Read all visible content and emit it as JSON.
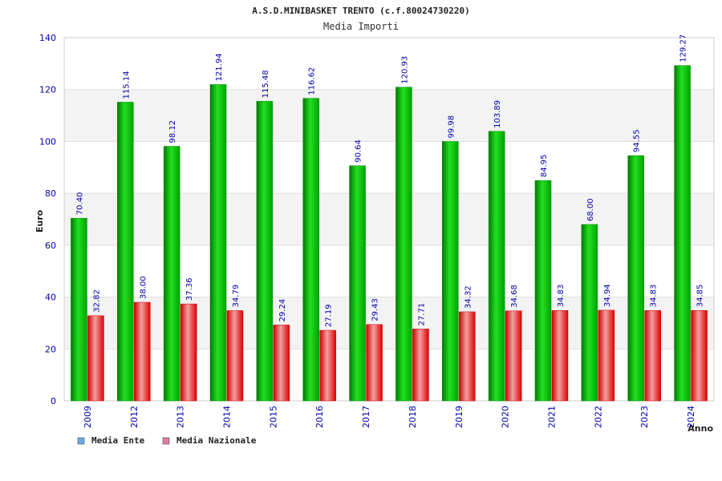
{
  "chart_data": {
    "type": "bar",
    "title": "A.S.D.MINIBASKET TRENTO (c.f.80024730220)",
    "subtitle": "Media Importi",
    "xlabel": "Anno",
    "ylabel": "Euro",
    "ylim": [
      0,
      140
    ],
    "yticks": [
      0,
      20,
      40,
      60,
      80,
      100,
      120,
      140
    ],
    "grid": true,
    "legend_position": "bottom-left",
    "categories": [
      "2009",
      "2012",
      "2013",
      "2014",
      "2015",
      "2016",
      "2017",
      "2018",
      "2019",
      "2020",
      "2021",
      "2022",
      "2023",
      "2024"
    ],
    "series": [
      {
        "name": "Media Ente",
        "color": "#00c000",
        "legend_color": "#6aa9e6",
        "values": [
          70.4,
          115.14,
          98.12,
          121.94,
          115.48,
          116.62,
          90.64,
          120.93,
          99.98,
          103.89,
          84.95,
          68.0,
          94.55,
          129.27
        ],
        "labels": [
          "70.40",
          "115.14",
          "98.12",
          "121.94",
          "115.48",
          "116.62",
          "90.64",
          "120.93",
          "99.98",
          "103.89",
          "84.95",
          "68.00",
          "94.55",
          "129.27"
        ]
      },
      {
        "name": "Media Nazionale",
        "color": "#ff0000",
        "legend_color": "#e07aa6",
        "values": [
          32.82,
          38.0,
          37.36,
          34.79,
          29.24,
          27.19,
          29.43,
          27.71,
          34.32,
          34.68,
          34.83,
          34.94,
          34.83,
          34.85
        ],
        "labels": [
          "32.82",
          "38.00",
          "37.36",
          "34.79",
          "29.24",
          "27.19",
          "29.43",
          "27.71",
          "34.32",
          "34.68",
          "34.83",
          "34.94",
          "34.83",
          "34.85"
        ]
      }
    ]
  }
}
